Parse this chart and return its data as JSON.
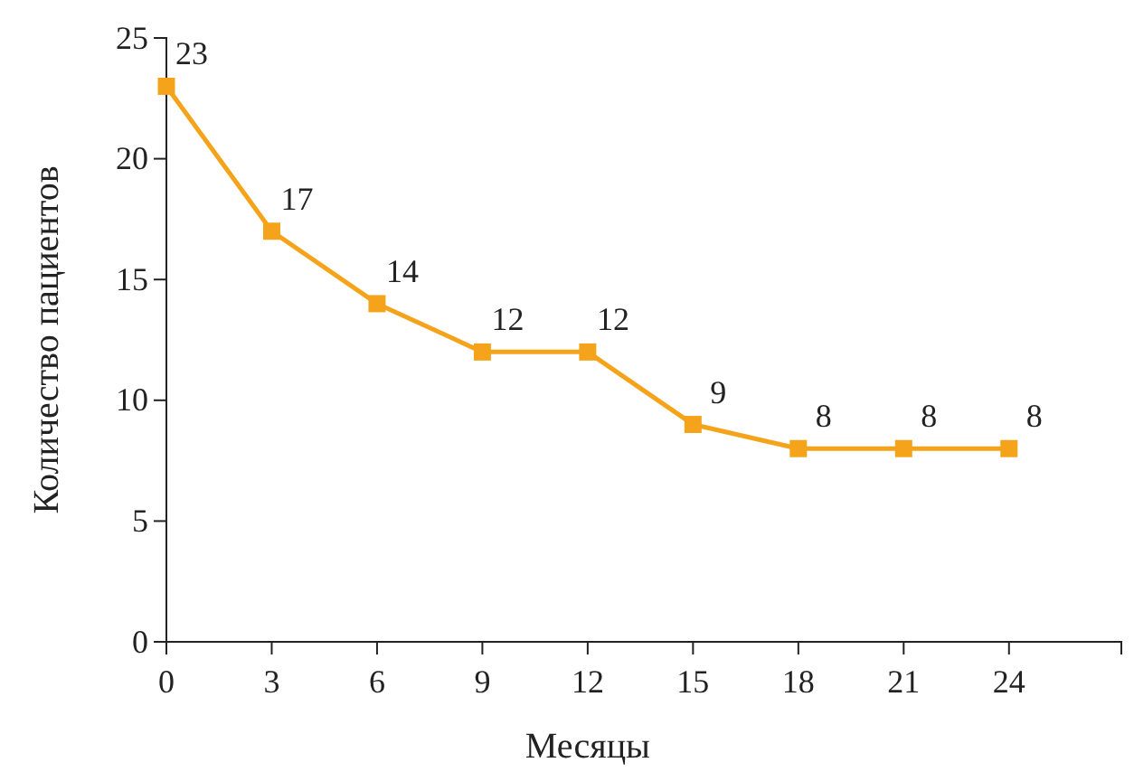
{
  "chart_data": {
    "type": "line",
    "xlabel": "Месяцы",
    "ylabel": "Количество пациентов",
    "x": [
      0,
      3,
      6,
      9,
      12,
      15,
      18,
      21,
      24
    ],
    "series": [
      {
        "color": "#f5a31a",
        "values": [
          23,
          17,
          14,
          12,
          12,
          9,
          8,
          8,
          8
        ]
      }
    ],
    "xlim": [
      0,
      27.2
    ],
    "xticks": [
      0,
      3,
      6,
      9,
      12,
      15,
      18,
      21,
      24
    ],
    "ylim": [
      0,
      25
    ],
    "yticks": [
      0,
      5,
      10,
      15,
      20,
      25
    ],
    "marker": "square",
    "line_style": "solid",
    "data_labels": true,
    "grid": false
  }
}
